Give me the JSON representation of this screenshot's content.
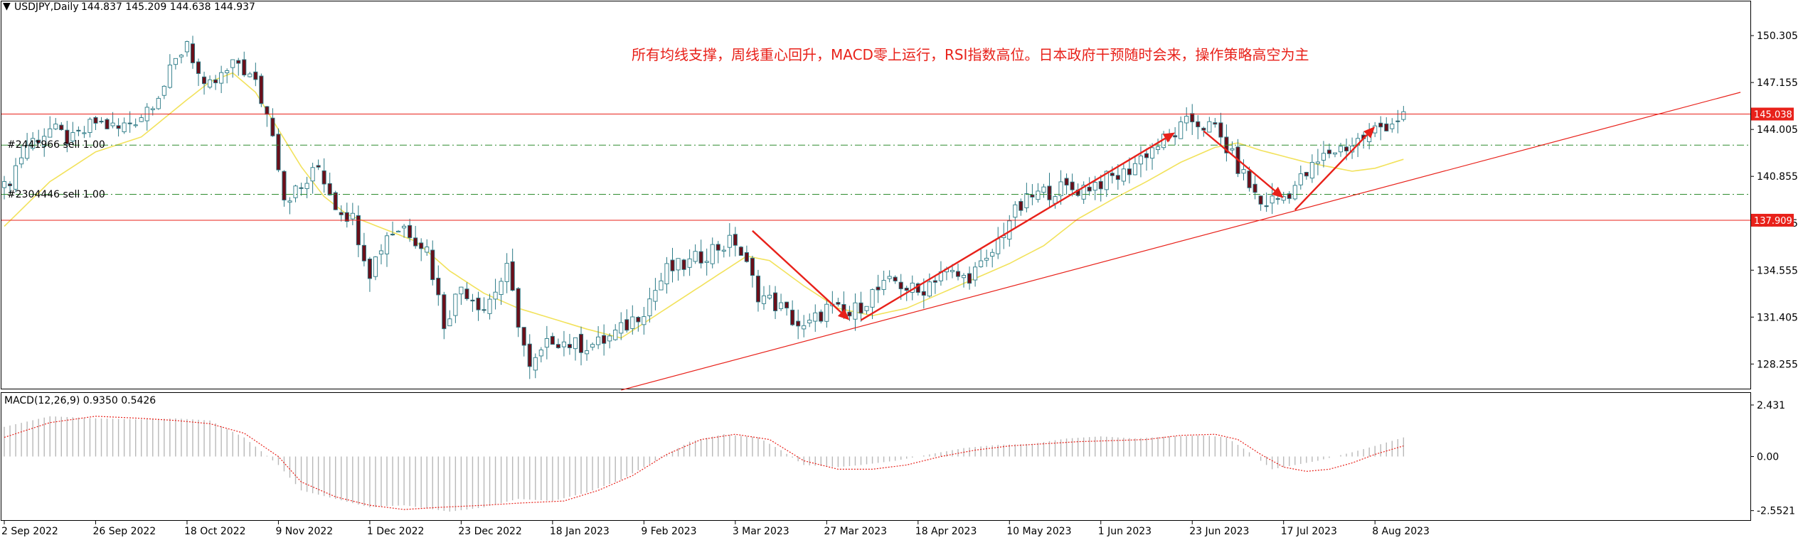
{
  "header": {
    "symbol": "USDJPY,Daily",
    "ohlc": "144.837 145.209 144.638 144.937"
  },
  "annotation": "所有均线支撑，周线重心回升，MACD零上运行，RSI指数高位。日本政府干预随时会来，操作策略高空为主",
  "orders": [
    "#2441966 sell 1.00",
    "#2304446 sell 1.00"
  ],
  "macd_label": "MACD(12,26,9) 0.9350 0.5426",
  "colors": {
    "bull_body": "#ffffff",
    "bear_body": "#6b0f1a",
    "wick": "#2a7a86",
    "ma": "#f2e25c",
    "level_line": "#e8211a",
    "dash_line": "#2e8b2e",
    "signal": "#e8211a",
    "hist": "#b8b8b8",
    "label_bg": "#e8211a",
    "arrow": "#e8211a"
  },
  "chart_data": {
    "type": "candlestick",
    "y_ticks": [
      "150.305",
      "147.155",
      "144.005",
      "140.855",
      "137.705",
      "134.555",
      "131.405",
      "128.255"
    ],
    "ylim": [
      126.6,
      152.6
    ],
    "x_ticks": [
      {
        "label": "2 Sep 2022",
        "index": 0
      },
      {
        "label": "26 Sep 2022",
        "index": 16
      },
      {
        "label": "18 Oct 2022",
        "index": 32
      },
      {
        "label": "9 Nov 2022",
        "index": 48
      },
      {
        "label": "1 Dec 2022",
        "index": 64
      },
      {
        "label": "23 Dec 2022",
        "index": 80
      },
      {
        "label": "18 Jan 2023",
        "index": 96
      },
      {
        "label": "9 Feb 2023",
        "index": 112
      },
      {
        "label": "3 Mar 2023",
        "index": 128
      },
      {
        "label": "27 Mar 2023",
        "index": 144
      },
      {
        "label": "18 Apr 2023",
        "index": 160
      },
      {
        "label": "10 May 2023",
        "index": 176
      },
      {
        "label": "1 Jun 2023",
        "index": 192
      },
      {
        "label": "23 Jun 2023",
        "index": 208
      },
      {
        "label": "17 Jul 2023",
        "index": 224
      },
      {
        "label": "8 Aug 2023",
        "index": 240
      }
    ],
    "price_labels": [
      "145.038",
      "137.909"
    ],
    "hlines": [
      145.038,
      137.909
    ],
    "dash_lines": [
      142.95,
      139.65
    ],
    "trendline": {
      "from_index": 108,
      "from_price": 126.5,
      "to_index": 304,
      "to_price": 146.5
    },
    "arrows": [
      {
        "from_index": 131,
        "from_price": 137.2,
        "to_index": 148,
        "to_price": 131.2
      },
      {
        "from_index": 150,
        "from_price": 131.2,
        "to_index": 205,
        "to_price": 143.8
      },
      {
        "from_index": 210,
        "from_price": 143.9,
        "to_index": 224,
        "to_price": 139.4
      },
      {
        "from_index": 226,
        "from_price": 138.6,
        "to_index": 240,
        "to_price": 144.2
      }
    ],
    "close_path": [
      [
        0,
        140
      ],
      [
        4,
        143
      ],
      [
        8,
        144
      ],
      [
        12,
        143.2
      ],
      [
        16,
        144.5
      ],
      [
        20,
        144
      ],
      [
        24,
        145
      ],
      [
        28,
        147
      ],
      [
        32,
        150
      ],
      [
        35,
        146.5
      ],
      [
        38,
        147.5
      ],
      [
        41,
        148.5
      ],
      [
        44,
        147
      ],
      [
        47,
        144
      ],
      [
        49,
        139.5
      ],
      [
        52,
        140
      ],
      [
        55,
        141.5
      ],
      [
        58,
        139
      ],
      [
        61,
        138
      ],
      [
        64,
        134.5
      ],
      [
        67,
        137
      ],
      [
        70,
        137.5
      ],
      [
        74,
        136
      ],
      [
        77,
        131
      ],
      [
        80,
        133.5
      ],
      [
        84,
        132
      ],
      [
        88,
        134.5
      ],
      [
        92,
        127.8
      ],
      [
        96,
        130
      ],
      [
        100,
        129.5
      ],
      [
        104,
        129.6
      ],
      [
        108,
        130.5
      ],
      [
        112,
        132
      ],
      [
        116,
        134.5
      ],
      [
        120,
        135
      ],
      [
        124,
        136
      ],
      [
        128,
        136.5
      ],
      [
        132,
        133
      ],
      [
        136,
        132
      ],
      [
        140,
        130.5
      ],
      [
        144,
        132
      ],
      [
        148,
        131.5
      ],
      [
        152,
        133
      ],
      [
        156,
        133.8
      ],
      [
        160,
        133
      ],
      [
        164,
        134.5
      ],
      [
        168,
        134
      ],
      [
        172,
        135
      ],
      [
        176,
        138
      ],
      [
        180,
        139.5
      ],
      [
        184,
        140
      ],
      [
        188,
        140
      ],
      [
        192,
        140.5
      ],
      [
        196,
        141
      ],
      [
        200,
        142.5
      ],
      [
        204,
        143.5
      ],
      [
        208,
        144.6
      ],
      [
        212,
        144
      ],
      [
        216,
        141.5
      ],
      [
        220,
        139
      ],
      [
        224,
        139.5
      ],
      [
        228,
        141
      ],
      [
        232,
        142.5
      ],
      [
        236,
        143
      ],
      [
        240,
        144
      ],
      [
        245,
        144.9
      ]
    ],
    "ma_path": [
      [
        0,
        137.5
      ],
      [
        8,
        140.5
      ],
      [
        16,
        142.5
      ],
      [
        24,
        143.5
      ],
      [
        32,
        146
      ],
      [
        36,
        147.2
      ],
      [
        40,
        147.8
      ],
      [
        44,
        146.5
      ],
      [
        48,
        144
      ],
      [
        52,
        141.5
      ],
      [
        56,
        139.5
      ],
      [
        60,
        138.3
      ],
      [
        66,
        137.4
      ],
      [
        72,
        136.5
      ],
      [
        78,
        134.5
      ],
      [
        84,
        133
      ],
      [
        90,
        132
      ],
      [
        96,
        131.3
      ],
      [
        102,
        130.6
      ],
      [
        108,
        130
      ],
      [
        114,
        131.5
      ],
      [
        120,
        133
      ],
      [
        126,
        134.5
      ],
      [
        130,
        135.5
      ],
      [
        134,
        135.2
      ],
      [
        140,
        133.5
      ],
      [
        146,
        132
      ],
      [
        152,
        131.5
      ],
      [
        158,
        132
      ],
      [
        164,
        133
      ],
      [
        170,
        134
      ],
      [
        176,
        135
      ],
      [
        182,
        136.2
      ],
      [
        188,
        138
      ],
      [
        194,
        139.3
      ],
      [
        200,
        140.5
      ],
      [
        206,
        141.8
      ],
      [
        212,
        142.8
      ],
      [
        216,
        143.1
      ],
      [
        220,
        142.6
      ],
      [
        224,
        142.2
      ],
      [
        228,
        141.8
      ],
      [
        232,
        141.5
      ],
      [
        236,
        141.2
      ],
      [
        240,
        141.4
      ],
      [
        245,
        142
      ]
    ],
    "macd_ticks": [
      "2.431",
      "0.00",
      "-2.5521"
    ],
    "macd_ylim": [
      -3.0,
      3.0
    ],
    "macd_signal_path": [
      [
        0,
        0.9
      ],
      [
        8,
        1.6
      ],
      [
        16,
        1.9
      ],
      [
        24,
        1.8
      ],
      [
        30,
        1.7
      ],
      [
        36,
        1.55
      ],
      [
        42,
        1.1
      ],
      [
        48,
        0
      ],
      [
        52,
        -1.2
      ],
      [
        58,
        -1.9
      ],
      [
        64,
        -2.3
      ],
      [
        70,
        -2.5
      ],
      [
        76,
        -2.4
      ],
      [
        84,
        -2.3
      ],
      [
        90,
        -2.2
      ],
      [
        98,
        -2.1
      ],
      [
        104,
        -1.6
      ],
      [
        110,
        -0.9
      ],
      [
        116,
        0.1
      ],
      [
        122,
        0.8
      ],
      [
        128,
        1.05
      ],
      [
        134,
        0.8
      ],
      [
        140,
        -0.2
      ],
      [
        146,
        -0.6
      ],
      [
        152,
        -0.6
      ],
      [
        158,
        -0.4
      ],
      [
        164,
        0
      ],
      [
        170,
        0.3
      ],
      [
        176,
        0.5
      ],
      [
        182,
        0.6
      ],
      [
        188,
        0.7
      ],
      [
        194,
        0.75
      ],
      [
        200,
        0.8
      ],
      [
        206,
        1.0
      ],
      [
        212,
        1.05
      ],
      [
        216,
        0.8
      ],
      [
        220,
        0.1
      ],
      [
        224,
        -0.5
      ],
      [
        228,
        -0.7
      ],
      [
        232,
        -0.6
      ],
      [
        236,
        -0.3
      ],
      [
        240,
        0.1
      ],
      [
        245,
        0.5
      ]
    ],
    "macd_hist_path": [
      [
        0,
        1.4
      ],
      [
        8,
        1.9
      ],
      [
        16,
        1.8
      ],
      [
        24,
        1.75
      ],
      [
        30,
        1.8
      ],
      [
        36,
        1.7
      ],
      [
        42,
        0.9
      ],
      [
        48,
        -0.4
      ],
      [
        52,
        -1.6
      ],
      [
        58,
        -2.0
      ],
      [
        64,
        -2.4
      ],
      [
        70,
        -2.3
      ],
      [
        78,
        -2.6
      ],
      [
        84,
        -2.4
      ],
      [
        90,
        -2.0
      ],
      [
        96,
        -2.1
      ],
      [
        102,
        -1.7
      ],
      [
        108,
        -1.1
      ],
      [
        114,
        -0.2
      ],
      [
        120,
        0.7
      ],
      [
        126,
        1.05
      ],
      [
        132,
        0.9
      ],
      [
        136,
        0.3
      ],
      [
        140,
        -0.4
      ],
      [
        146,
        -0.5
      ],
      [
        150,
        -0.4
      ],
      [
        156,
        -0.2
      ],
      [
        162,
        0.1
      ],
      [
        168,
        0.4
      ],
      [
        174,
        0.55
      ],
      [
        180,
        0.6
      ],
      [
        186,
        0.85
      ],
      [
        192,
        0.95
      ],
      [
        198,
        0.85
      ],
      [
        204,
        0.95
      ],
      [
        210,
        1.0
      ],
      [
        214,
        0.9
      ],
      [
        218,
        0.2
      ],
      [
        222,
        -0.6
      ],
      [
        226,
        -0.4
      ],
      [
        230,
        -0.2
      ],
      [
        236,
        0.2
      ],
      [
        240,
        0.5
      ],
      [
        245,
        0.9
      ]
    ]
  }
}
